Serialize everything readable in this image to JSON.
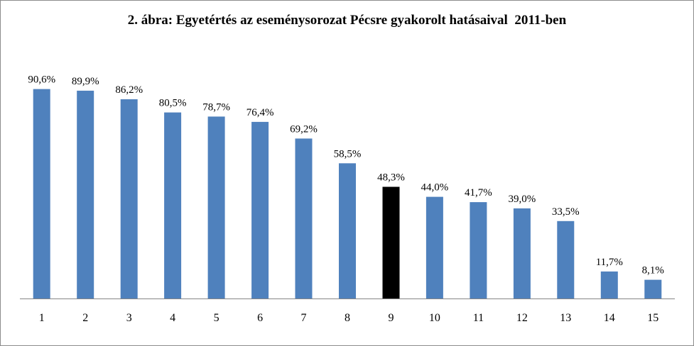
{
  "chart_data": {
    "type": "bar",
    "title": "2. ábra: Egyetértés az eseménysorozat Pécsre gyakorolt hatásaival  2011-ben",
    "categories": [
      "1",
      "2",
      "3",
      "4",
      "5",
      "6",
      "7",
      "8",
      "9",
      "10",
      "11",
      "12",
      "13",
      "14",
      "15"
    ],
    "values": [
      90.6,
      89.9,
      86.2,
      80.5,
      78.7,
      76.4,
      69.2,
      58.5,
      48.3,
      44.0,
      41.7,
      39.0,
      33.5,
      11.7,
      8.1
    ],
    "data_labels": [
      "90,6%",
      "89,9%",
      "86,2%",
      "80,5%",
      "78,7%",
      "76,4%",
      "69,2%",
      "58,5%",
      "48,3%",
      "44,0%",
      "41,7%",
      "39,0%",
      "33,5%",
      "11,7%",
      "8,1%"
    ],
    "highlight_index": 8,
    "colors": {
      "bar": "#4F81BD",
      "highlight": "#000000",
      "axis": "#868686"
    },
    "ylim": [
      0,
      100
    ],
    "grid": false,
    "legend": "none",
    "xlabel": "",
    "ylabel": ""
  }
}
